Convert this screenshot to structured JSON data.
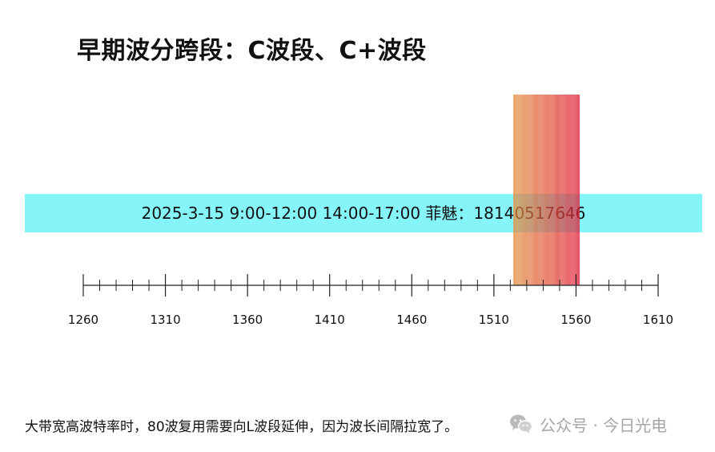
{
  "title": "早期波分跨段：C波段、C+波段",
  "banner": {
    "text": "2025-3-15  9:00-12:00  14:00-17:00   菲魅：18140517646"
  },
  "chart_data": {
    "type": "axis-diagram",
    "axis": {
      "min": 1260,
      "max": 1610,
      "major_ticks": [
        1260,
        1310,
        1360,
        1410,
        1460,
        1510,
        1560,
        1610
      ],
      "minor_step": 10,
      "tick_labels": [
        "1260",
        "1310",
        "1360",
        "1410",
        "1460",
        "1510",
        "1560",
        "1610"
      ]
    },
    "channels": {
      "start": 1522,
      "end": 1562,
      "count": 80,
      "color_from": "#e39040",
      "color_to": "#e0203a"
    }
  },
  "caption": "大带宽高波特率时，80波复用需要向L波段延伸，因为波长间隔拉宽了。",
  "watermark": {
    "icon": "wechat-icon",
    "text": "公众号 · 今日光电"
  }
}
